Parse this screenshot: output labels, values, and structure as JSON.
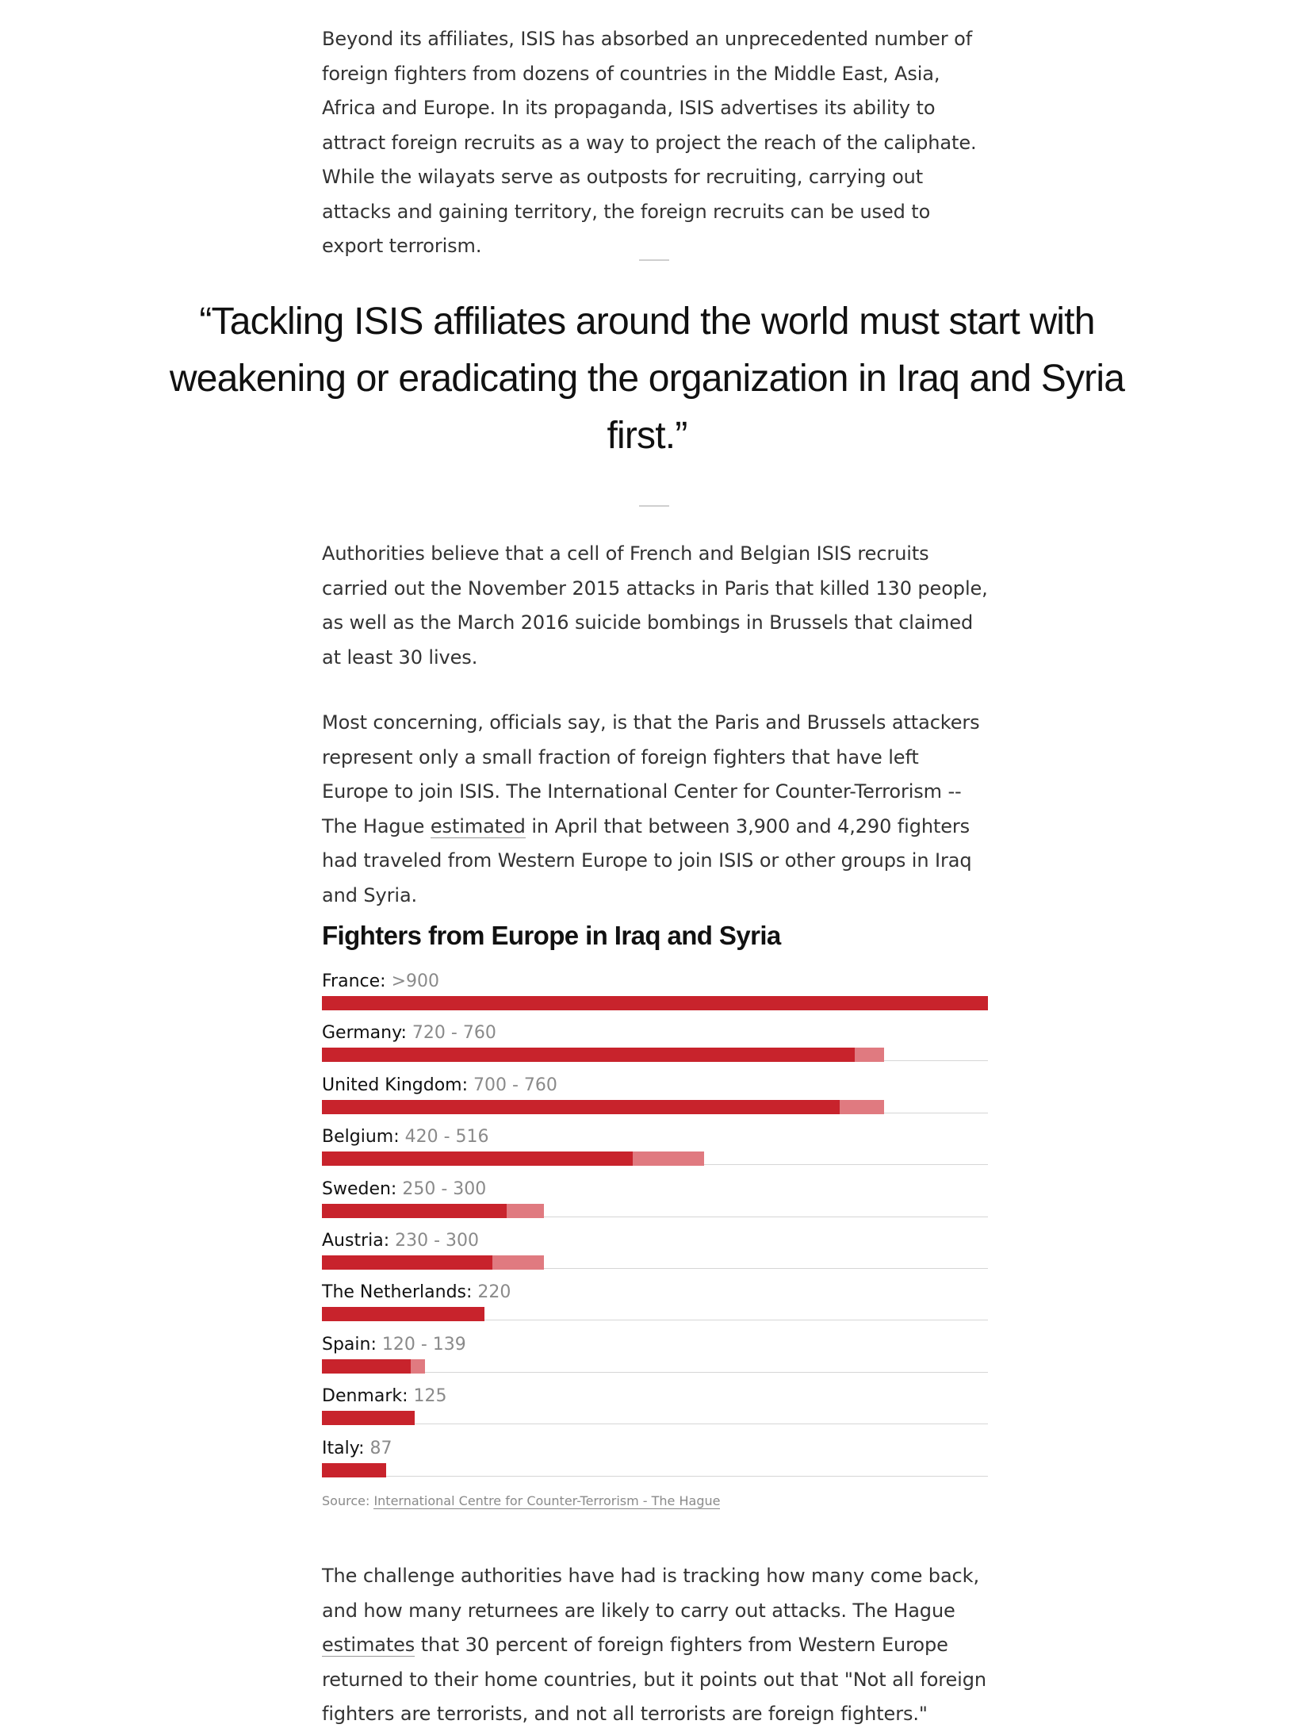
{
  "article": {
    "para1": "Beyond its affiliates, ISIS has absorbed an unprecedented number of foreign fighters from dozens of countries in the Middle East, Asia, Africa and Europe. In its propaganda, ISIS advertises its ability to attract foreign recruits as a way to project the reach of the caliphate. While the wilayats serve as outposts for recruiting, carrying out attacks and gaining territory, the foreign recruits can be used to export terrorism.",
    "quote": "“Tackling ISIS affiliates around the world must start with weakening or eradicating the organization in Iraq and Syria first.”",
    "para2": "Authorities believe that a cell of French and Belgian ISIS recruits carried out the November 2015 attacks in Paris that killed 130 people, as well as the March 2016 suicide bombings in Brussels that claimed at least 30 lives.",
    "para3_before": "Most concerning, officials say, is that the Paris and Brussels attackers represent only a small fraction of foreign fighters that have left Europe to join ISIS. The International Center for Counter-Terrorism -- The Hague ",
    "para3_link": "estimated",
    "para3_after": " in April that between 3,900 and 4,290 fighters had traveled from Western Europe to join ISIS or other groups in Iraq and Syria.",
    "para4_before": "The challenge authorities have had is tracking how many come back, and how many returnees are likely to carry out attacks. The Hague ",
    "para4_link": "estimates",
    "para4_after": " that 30 percent of foreign fighters from Western Europe returned to their home countries, but it points out that \"Not all foreign fighters are terrorists, and not all terrorists are foreign fighters.\""
  },
  "chart_data": {
    "type": "bar",
    "orientation": "horizontal",
    "title": "Fighters from Europe in Iraq and Syria",
    "categories": [
      "France",
      "Germany",
      "United Kingdom",
      "Belgium",
      "Sweden",
      "Austria",
      "The Netherlands",
      "Spain",
      "Denmark",
      "Italy"
    ],
    "value_labels": [
      ">900",
      "720 - 760",
      "700 - 760",
      "420 - 516",
      "250 - 300",
      "230 - 300",
      "220",
      "120 - 139",
      "125",
      "87"
    ],
    "series": [
      {
        "values": [
          900,
          720,
          700,
          420,
          250,
          230,
          220,
          120,
          125,
          87
        ]
      },
      {
        "values": [
          900,
          760,
          760,
          516,
          300,
          300,
          220,
          139,
          125,
          87
        ]
      }
    ],
    "xlim": [
      0,
      900
    ],
    "colors": {
      "min": "#c8232c",
      "range": "#e07a80"
    },
    "source_label": "Source: ",
    "source_link": "International Centre for Counter-Terrorism - The Hague"
  }
}
